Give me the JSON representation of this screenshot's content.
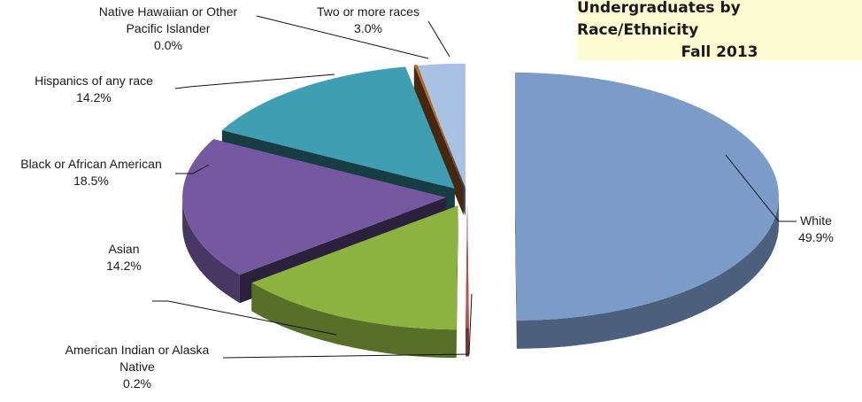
{
  "chart_data": {
    "type": "pie",
    "title": [
      "Undergraduates by Race/Ethnicity",
      "Fall 2013"
    ],
    "slices": [
      {
        "label": [
          "White"
        ],
        "pct_label": "49.9%",
        "value": 49.9,
        "color": "#7b9bc9"
      },
      {
        "label": [
          "American Indian or Alaska",
          "Native"
        ],
        "pct_label": "0.2%",
        "value": 0.2,
        "color": "#c0504d"
      },
      {
        "label": [
          "Asian"
        ],
        "pct_label": "14.2%",
        "value": 14.2,
        "color": "#8cb33f"
      },
      {
        "label": [
          "Black or African American"
        ],
        "pct_label": "18.5%",
        "value": 18.5,
        "color": "#7558a0"
      },
      {
        "label": [
          "Hispanics of any race"
        ],
        "pct_label": "14.2%",
        "value": 14.2,
        "color": "#3f9eb2"
      },
      {
        "label": [
          "Native Hawaiian or Other",
          "Pacific Islander"
        ],
        "pct_label": "0.0%",
        "value": 0.0,
        "color": "#b86a2c"
      },
      {
        "label": [
          "Two or more races"
        ],
        "pct_label": "3.0%",
        "value": 3.0,
        "color": "#a9c2e3"
      }
    ],
    "legend": "none",
    "grid": false
  }
}
